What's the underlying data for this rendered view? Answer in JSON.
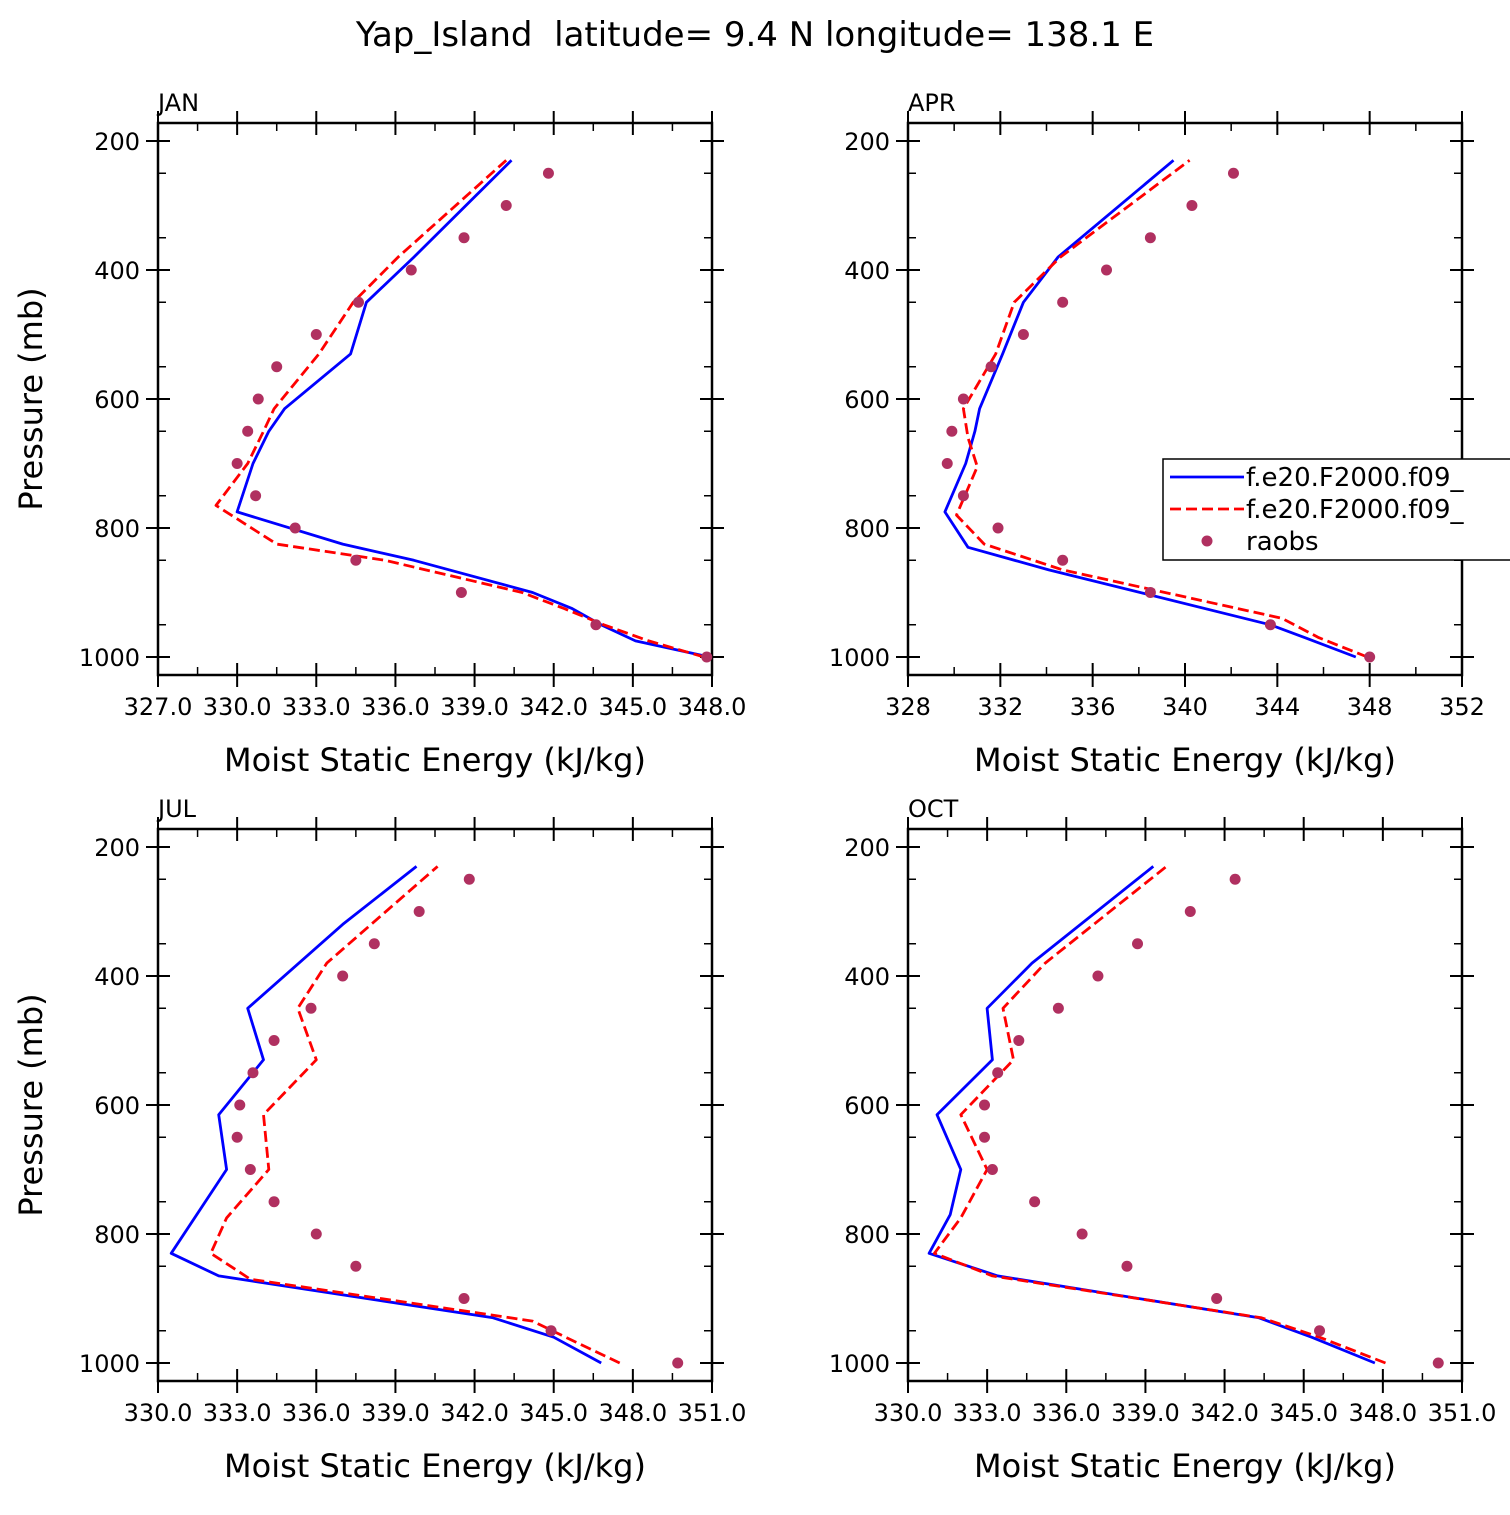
{
  "title": "Yap_Island  latitude= 9.4 N longitude= 138.1 E",
  "legend": {
    "entries": [
      {
        "label": "f.e20.F2000.f09_",
        "style": "solid",
        "color": "#0000ff"
      },
      {
        "label": "f.e20.F2000.f09_",
        "style": "dashed",
        "color": "#ff0000"
      },
      {
        "label": "raobs",
        "style": "marker",
        "color": "#b03060"
      }
    ]
  },
  "colors": {
    "model_1": "#0000ff",
    "model_2": "#ff0000",
    "raobs": "#b03060"
  },
  "chart_data": [
    {
      "type": "line",
      "panel_title": "JAN",
      "xlabel": "Moist Static Energy (kJ/kg)",
      "ylabel": "Pressure (mb)",
      "xlim": [
        327,
        348
      ],
      "ylim": [
        1000,
        200
      ],
      "xtick_labels": [
        "327.0",
        "330.0",
        "333.0",
        "336.0",
        "339.0",
        "342.0",
        "345.0",
        "348.0"
      ],
      "ytick_labels": [
        "200",
        "400",
        "600",
        "800",
        "1000"
      ],
      "series": [
        {
          "name": "f.e20.F2000.f09_",
          "style": "solid",
          "pressure": [
            1000,
            975,
            950,
            925,
            900,
            850,
            825,
            775,
            700,
            650,
            615,
            530,
            450,
            380,
            230
          ],
          "values": [
            347.9,
            345.1,
            343.8,
            342.7,
            341.2,
            336.7,
            334.0,
            330.0,
            330.6,
            331.2,
            331.8,
            334.3,
            334.9,
            336.7,
            340.4
          ]
        },
        {
          "name": "f.e20.F2000.f09_",
          "style": "dashed",
          "pressure": [
            1000,
            975,
            950,
            925,
            900,
            850,
            825,
            765,
            700,
            650,
            615,
            530,
            450,
            380,
            230
          ],
          "values": [
            347.7,
            345.6,
            343.9,
            342.4,
            340.8,
            335.6,
            331.5,
            329.2,
            330.4,
            331.0,
            331.4,
            333.1,
            334.4,
            336.1,
            340.2
          ]
        },
        {
          "name": "raobs",
          "style": "marker",
          "pressure": [
            1000,
            950,
            900,
            850,
            800,
            750,
            700,
            650,
            600,
            550,
            500,
            450,
            400,
            350,
            300,
            250
          ],
          "values": [
            347.8,
            343.6,
            338.5,
            334.5,
            332.2,
            330.7,
            330.0,
            330.4,
            330.8,
            331.5,
            333.0,
            334.6,
            336.6,
            338.6,
            340.2,
            341.8
          ]
        }
      ]
    },
    {
      "type": "line",
      "panel_title": "APR",
      "xlabel": "Moist Static Energy (kJ/kg)",
      "ylabel": "",
      "xlim": [
        328,
        352
      ],
      "ylim": [
        1000,
        200
      ],
      "xtick_labels": [
        "328",
        "332",
        "336",
        "340",
        "344",
        "348",
        "352"
      ],
      "ytick_labels": [
        "200",
        "400",
        "600",
        "800",
        "1000"
      ],
      "series": [
        {
          "name": "f.e20.F2000.f09_",
          "style": "solid",
          "pressure": [
            1000,
            970,
            950,
            865,
            830,
            775,
            700,
            650,
            615,
            530,
            450,
            380,
            230
          ],
          "values": [
            347.4,
            345.2,
            343.7,
            334.1,
            330.6,
            329.6,
            330.5,
            330.9,
            331.1,
            332.1,
            333.0,
            334.5,
            339.5
          ]
        },
        {
          "name": "f.e20.F2000.f09_",
          "style": "dashed",
          "pressure": [
            1000,
            970,
            940,
            865,
            825,
            780,
            705,
            660,
            615,
            530,
            450,
            380,
            230
          ],
          "values": [
            347.9,
            345.8,
            344.2,
            334.7,
            331.3,
            330.1,
            331.0,
            330.6,
            330.4,
            331.8,
            332.6,
            334.6,
            340.2
          ]
        },
        {
          "name": "raobs",
          "style": "marker",
          "pressure": [
            1000,
            950,
            900,
            850,
            800,
            750,
            700,
            650,
            600,
            550,
            500,
            450,
            400,
            350,
            300,
            250
          ],
          "values": [
            348.0,
            343.7,
            338.5,
            334.7,
            331.9,
            330.4,
            329.7,
            329.9,
            330.4,
            331.6,
            333.0,
            334.7,
            336.6,
            338.5,
            340.3,
            342.1
          ]
        }
      ]
    },
    {
      "type": "line",
      "panel_title": "JUL",
      "xlabel": "Moist Static Energy (kJ/kg)",
      "ylabel": "Pressure (mb)",
      "xlim": [
        330,
        351
      ],
      "ylim": [
        1000,
        200
      ],
      "xtick_labels": [
        "330.0",
        "333.0",
        "336.0",
        "339.0",
        "342.0",
        "345.0",
        "348.0",
        "351.0"
      ],
      "ytick_labels": [
        "200",
        "400",
        "600",
        "800",
        "1000"
      ],
      "series": [
        {
          "name": "f.e20.F2000.f09_",
          "style": "solid",
          "pressure": [
            1000,
            960,
            930,
            865,
            830,
            700,
            615,
            530,
            450,
            320,
            230
          ],
          "values": [
            346.8,
            345.0,
            342.7,
            332.3,
            330.5,
            332.6,
            332.3,
            334.0,
            333.4,
            337.0,
            339.8
          ]
        },
        {
          "name": "f.e20.F2000.f09_",
          "style": "dashed",
          "pressure": [
            1000,
            965,
            935,
            870,
            830,
            775,
            700,
            615,
            530,
            450,
            380,
            230
          ],
          "values": [
            347.5,
            345.7,
            344.2,
            333.5,
            332.0,
            332.6,
            334.2,
            334.0,
            336.0,
            335.3,
            336.4,
            340.6
          ]
        },
        {
          "name": "raobs",
          "style": "marker",
          "pressure": [
            1000,
            950,
            900,
            850,
            800,
            750,
            700,
            650,
            600,
            550,
            500,
            450,
            400,
            350,
            300,
            250
          ],
          "values": [
            349.7,
            344.9,
            341.6,
            337.5,
            336.0,
            334.4,
            333.5,
            333.0,
            333.1,
            333.6,
            334.4,
            335.8,
            337.0,
            338.2,
            339.9,
            341.8
          ]
        }
      ]
    },
    {
      "type": "line",
      "panel_title": "OCT",
      "xlabel": "Moist Static Energy (kJ/kg)",
      "ylabel": "",
      "xlim": [
        330,
        351
      ],
      "ylim": [
        1000,
        200
      ],
      "xtick_labels": [
        "330.0",
        "333.0",
        "336.0",
        "339.0",
        "342.0",
        "345.0",
        "348.0",
        "351.0"
      ],
      "ytick_labels": [
        "200",
        "400",
        "600",
        "800",
        "1000"
      ],
      "series": [
        {
          "name": "f.e20.F2000.f09_",
          "style": "solid",
          "pressure": [
            1000,
            960,
            930,
            865,
            830,
            770,
            700,
            615,
            530,
            450,
            380,
            230
          ],
          "values": [
            347.7,
            345.3,
            343.3,
            333.4,
            330.8,
            331.6,
            332.0,
            331.1,
            333.2,
            333.0,
            334.7,
            339.3
          ]
        },
        {
          "name": "f.e20.F2000.f09_",
          "style": "dashed",
          "pressure": [
            1000,
            960,
            930,
            865,
            830,
            775,
            700,
            615,
            530,
            450,
            380,
            230
          ],
          "values": [
            348.1,
            345.6,
            343.4,
            333.2,
            331.0,
            332.0,
            333.0,
            332.0,
            334.0,
            333.6,
            335.2,
            339.8
          ]
        },
        {
          "name": "raobs",
          "style": "marker",
          "pressure": [
            1000,
            950,
            900,
            850,
            800,
            750,
            700,
            650,
            600,
            550,
            500,
            450,
            400,
            350,
            300,
            250
          ],
          "values": [
            350.1,
            345.6,
            341.7,
            338.3,
            336.6,
            334.8,
            333.2,
            332.9,
            332.9,
            333.4,
            334.2,
            335.7,
            337.2,
            338.7,
            340.7,
            342.4
          ]
        }
      ]
    }
  ]
}
